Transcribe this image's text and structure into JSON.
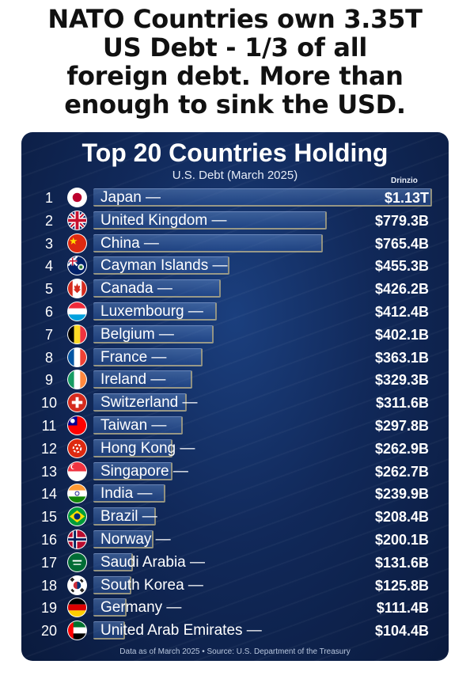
{
  "headline": {
    "lines": [
      "NATO Countries own 3.35T",
      "US Debt - 1/3 of all",
      "foreign debt.  More than",
      "enough to sink the USD."
    ]
  },
  "brand": "Drinzio",
  "footnote": "Data as of March 2025 • Source: U.S. Department of the Treasury",
  "chart_data": {
    "type": "bar",
    "orientation": "horizontal",
    "title": "Top 20 Countries Holding",
    "subtitle": "U.S. Debt (March 2025)",
    "unit": "USD billions",
    "xlim": [
      0,
      1130
    ],
    "grid": false,
    "legend": "none",
    "categories": [
      "Japan",
      "United Kingdom",
      "China",
      "Cayman Islands",
      "Canada",
      "Luxembourg",
      "Belgium",
      "France",
      "Ireland",
      "Switzerland",
      "Taiwan",
      "Hong Kong",
      "Singapore",
      "India",
      "Brazil",
      "Norway",
      "Saudi Arabia",
      "South Korea",
      "Germany",
      "United Arab Emirates"
    ],
    "ranks": [
      "1",
      "2",
      "3",
      "4",
      "5",
      "6",
      "7",
      "8",
      "9",
      "10",
      "11",
      "12",
      "13",
      "14",
      "15",
      "16",
      "17",
      "18",
      "19",
      "20"
    ],
    "labels": [
      "Japan —",
      "United Kingdom —",
      "China —",
      "Cayman Islands —",
      "Canada —",
      "Luxembourg —",
      "Belgium —",
      "France —",
      "Ireland —",
      "Switzerland —",
      "Taiwan —",
      "Hong Kong —",
      "Singapore —",
      "India —",
      "Brazil —",
      "Norway —",
      "Saudi Arabia —",
      "South Korea —",
      "Germany —",
      "United Arab Emirates —"
    ],
    "values": [
      1130,
      779.3,
      765.4,
      455.3,
      426.2,
      412.4,
      402.1,
      363.1,
      329.3,
      311.6,
      297.8,
      262.9,
      262.7,
      239.9,
      208.4,
      200.1,
      131.6,
      125.8,
      111.4,
      104.4
    ],
    "value_labels": [
      "$1.13T",
      "$779.3B",
      "$765.4B",
      "$455.3B",
      "$426.2B",
      "$412.4B",
      "$402.1B",
      "$363.1B",
      "$329.3B",
      "$311.6B",
      "$297.8B",
      "$262.9B",
      "$262.7B",
      "$239.9B",
      "$208.4B",
      "$200.1B",
      "$131.6B",
      "$125.8B",
      "$111.4B",
      "$104.4B"
    ],
    "flag_icons": [
      "japan-flag-icon",
      "united-kingdom-flag-icon",
      "china-flag-icon",
      "cayman-islands-flag-icon",
      "canada-flag-icon",
      "luxembourg-flag-icon",
      "belgium-flag-icon",
      "france-flag-icon",
      "ireland-flag-icon",
      "switzerland-flag-icon",
      "taiwan-flag-icon",
      "hong-kong-flag-icon",
      "singapore-flag-icon",
      "india-flag-icon",
      "brazil-flag-icon",
      "norway-flag-icon",
      "saudi-arabia-flag-icon",
      "south-korea-flag-icon",
      "germany-flag-icon",
      "uae-flag-icon"
    ]
  },
  "colors": {
    "background_top": "#1b3f7e",
    "background_bottom": "#0a1a3d",
    "text": "#ffffff",
    "bar_fill": "#3c6aa8",
    "bar_edge": "#e6c878"
  }
}
